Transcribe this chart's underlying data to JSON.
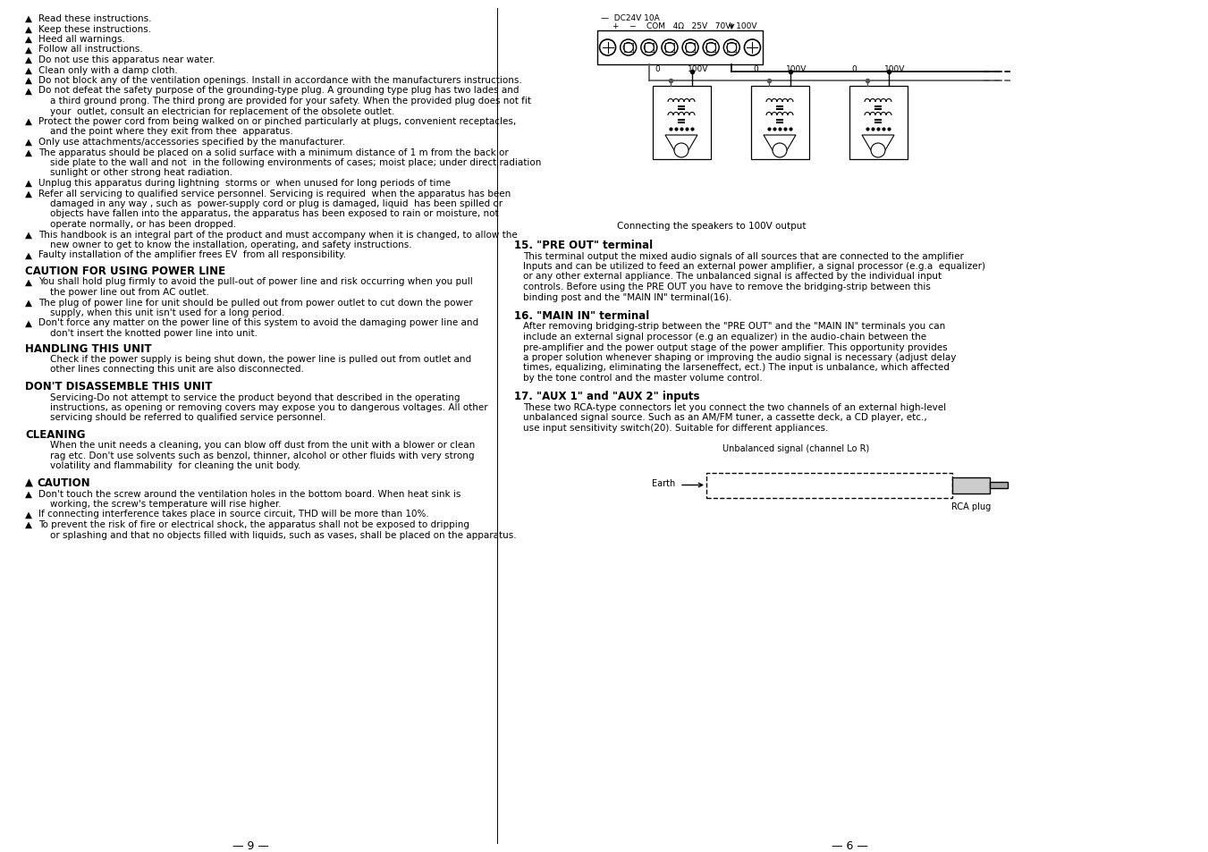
{
  "background_color": "#ffffff",
  "left_page_num": "9",
  "right_page_num": "6",
  "left_bullets": [
    [
      "Read these instructions."
    ],
    [
      "Keep these instructions."
    ],
    [
      "Heed all warnings."
    ],
    [
      "Follow all instructions."
    ],
    [
      "Do not use this apparatus near water."
    ],
    [
      "Clean only with a damp cloth."
    ],
    [
      "Do not block any of the ventilation openings. Install in accordance with the manufacturers instructions."
    ],
    [
      "Do not defeat the safety purpose of the grounding-type plug. A grounding type plug has two lades and",
      "a third ground prong. The third prong are provided for your safety. When the provided plug does not fit",
      "your  outlet, consult an electrician for replacement of the obsolete outlet."
    ],
    [
      "Protect the power cord from being walked on or pinched particularly at plugs, convenient receptacles,",
      "and the point where they exit from thee  apparatus."
    ],
    [
      "Only use attachments/accessories specified by the manufacturer."
    ],
    [
      "The apparatus should be placed on a solid surface with a minimum distance of 1 m from the back or",
      "side plate to the wall and not  in the following environments of cases; moist place; under direct radiation",
      "sunlight or other strong heat radiation."
    ],
    [
      "Unplug this apparatus during lightning  storms or  when unused for long periods of time"
    ],
    [
      "Refer all servicing to qualified service personnel. Servicing is required  when the apparatus has been",
      "damaged in any way , such as  power-supply cord or plug is damaged, liquid  has been spilled or",
      "objects have fallen into the apparatus, the apparatus has been exposed to rain or moisture, not",
      "operate normally, or has been dropped."
    ],
    [
      "This handbook is an integral part of the product and must accompany when it is changed, to allow the",
      "new owner to get to know the installation, operating, and safety instructions."
    ],
    [
      "Faulty installation of the amplifier frees EV  from all responsibility."
    ]
  ],
  "left_sections": [
    {
      "title": "CAUTION FOR USING POWER LINE",
      "has_triangle": false,
      "items": [
        [
          "You shall hold plug firmly to avoid the pull-out of power line and risk occurring when you pull",
          "the power line out from AC outlet."
        ],
        [
          "The plug of power line for unit should be pulled out from power outlet to cut down the power",
          "supply, when this unit isn't used for a long period."
        ],
        [
          "Don't force any matter on the power line of this system to avoid the damaging power line and",
          "don't insert the knotted power line into unit."
        ]
      ]
    },
    {
      "title": "HANDLING THIS UNIT",
      "has_triangle": false,
      "body": [
        "Check if the power supply is being shut down, the power line is pulled out from outlet and",
        "other lines connecting this unit are also disconnected."
      ]
    },
    {
      "title": "DON'T DISASSEMBLE THIS UNIT",
      "has_triangle": false,
      "body": [
        "Servicing-Do not attempt to service the product beyond that described in the operating",
        "instructions, as opening or removing covers may expose you to dangerous voltages. All other",
        "servicing should be referred to qualified service personnel."
      ]
    },
    {
      "title": "CLEANING",
      "has_triangle": false,
      "body": [
        "When the unit needs a cleaning, you can blow off dust from the unit with a blower or clean",
        "rag etc. Don't use solvents such as benzol, thinner, alcohol or other fluids with very strong",
        "volatility and flammability  for cleaning the unit body."
      ]
    },
    {
      "title": "CAUTION",
      "has_triangle": true,
      "items": [
        [
          "Don't touch the screw around the ventilation holes in the bottom board. When heat sink is",
          "working, the screw's temperature will rise higher."
        ],
        [
          "If connecting interference takes place in source circuit, THD will be more than 10%."
        ],
        [
          "To prevent the risk of fire or electrical shock, the apparatus shall not be exposed to dripping",
          "or splashing and that no objects filled with liquids, such as vases, shall be placed on the apparatus."
        ]
      ]
    }
  ],
  "right_sections": [
    {
      "num": "15.",
      "title": "\"PRE OUT\" terminal",
      "body": [
        "This terminal output the mixed audio signals of all sources that are connected to the amplifier",
        "Inputs and can be utilized to feed an external power amplifier, a signal processor (e.g.a  equalizer)",
        "or any other external appliance. The unbalanced signal is affected by the individual input",
        "controls. Before using the PRE OUT you have to remove the bridging-strip between this",
        "binding post and the \"MAIN IN\" terminal(16)."
      ]
    },
    {
      "num": "16.",
      "title": "\"MAIN IN\" terminal",
      "body": [
        "After removing bridging-strip between the \"PRE OUT\" and the \"MAIN IN\" terminals you can",
        "include an external signal processor (e.g an equalizer) in the audio-chain between the",
        "pre-amplifier and the power output stage of the power amplifier. This opportunity provides",
        "a proper solution whenever shaping or improving the audio signal is necessary (adjust delay",
        "times, equalizing, eliminating the larseneffect, ect.) The input is unbalance, which affected",
        "by the tone control and the master volume control."
      ]
    },
    {
      "num": "17.",
      "title": "\"AUX 1\" and \"AUX 2\" inputs",
      "body": [
        "These two RCA-type connectors let you connect the two channels of an external high-level",
        "unbalanced signal source. Such as an AM/FM tuner, a cassette deck, a CD player, etc.,",
        "use input sensitivity switch(20). Suitable for different appliances."
      ]
    }
  ],
  "diagram_caption": "Connecting the speakers to 100V output",
  "rca_label_top": "Unbalanced signal (channel Lo R)",
  "rca_label_earth": "Earth",
  "rca_label_plug": "RCA plug"
}
